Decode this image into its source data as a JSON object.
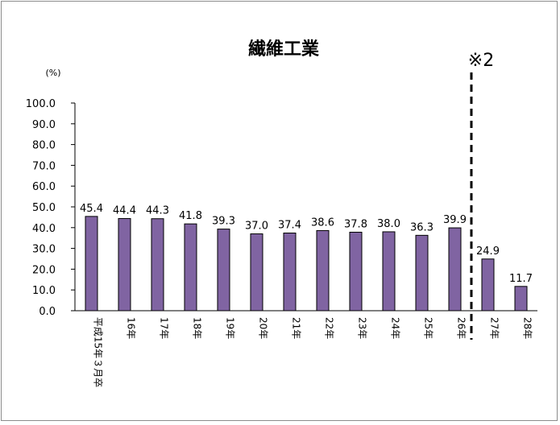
{
  "chart_data": {
    "type": "bar",
    "title": "繊維工業",
    "unit_label": "(%)",
    "ylim": [
      0,
      100
    ],
    "yticks": [
      "0.0",
      "10.0",
      "20.0",
      "30.0",
      "40.0",
      "50.0",
      "60.0",
      "70.0",
      "80.0",
      "90.0",
      "100.0"
    ],
    "categories": [
      "平成15年３月卒",
      "16年",
      "17年",
      "18年",
      "19年",
      "20年",
      "21年",
      "22年",
      "23年",
      "24年",
      "25年",
      "26年",
      "27年",
      "28年"
    ],
    "values": [
      45.4,
      44.4,
      44.3,
      41.8,
      39.3,
      37.0,
      37.4,
      38.6,
      37.8,
      38.0,
      36.3,
      39.9,
      24.9,
      11.7
    ],
    "value_labels": [
      "45.4",
      "44.4",
      "44.3",
      "41.8",
      "39.3",
      "37.0",
      "37.4",
      "38.6",
      "37.8",
      "38.0",
      "36.3",
      "39.9",
      "24.9",
      "11.7"
    ],
    "bar_color": "#8064a2",
    "grid": false,
    "annotation": {
      "text": "※2",
      "between": [
        "26年",
        "27年"
      ],
      "style": "dashed-vertical-line"
    }
  }
}
